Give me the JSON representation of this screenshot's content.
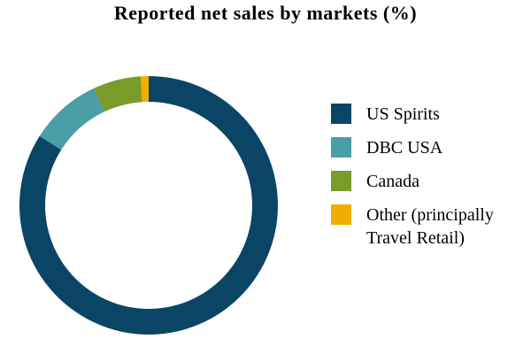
{
  "chart_data": {
    "type": "donut",
    "title": "Reported net sales by markets (%)",
    "categories": [
      "US Spirits",
      "DBC USA",
      "Canada",
      "Other (principally Travel Retail)"
    ],
    "values": [
      84,
      9,
      6,
      1
    ],
    "colors": [
      "#0b4566",
      "#4a9ea6",
      "#7a9a2a",
      "#f2ae00"
    ]
  }
}
